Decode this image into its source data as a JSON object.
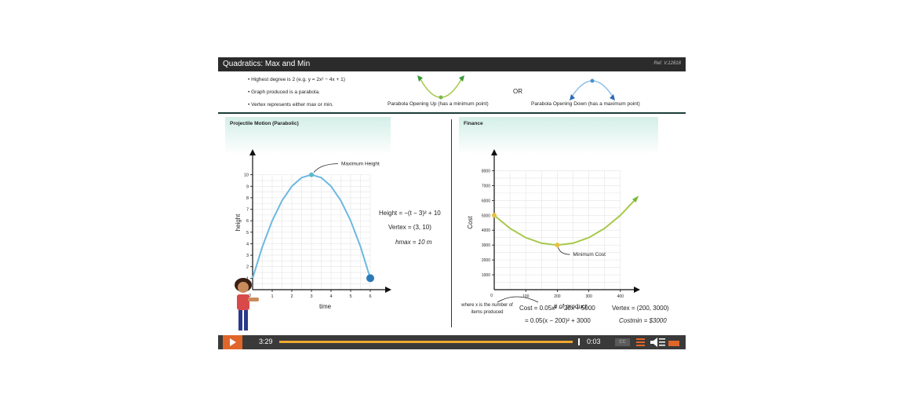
{
  "header": {
    "title": "Quadratics: Max and Min",
    "ref": "Ref. V.12818"
  },
  "intro": {
    "bullets": [
      "Highest degree is 2 (e.g. y  =  2x² − 4x + 1)",
      "Graph produced is a parabola.",
      "Vertex represents either max or min."
    ],
    "opening_up_label": "Parabola Opening Up (has a minimum point)",
    "or_label": "OR",
    "opening_down_label": "Parabola Opening Down (has a maximum point)"
  },
  "left_panel": {
    "title": "Projectile Motion (Parabolic)",
    "annotation": "Maximum Height",
    "equations": [
      "Height  =  −(t − 3)² + 10",
      "Vertex  =  (3, 10)",
      "hmax  =  10 m"
    ]
  },
  "right_panel": {
    "title": "Finance",
    "annotation": "Minimum  Cost",
    "note": "where x is the number of items produced",
    "equations": [
      "Cost  =  0.05x² − 20x + 5000",
      "=  0.05(x − 200)² + 3000",
      "Vertex  =  (200, 3000)",
      "Costmin  =  $3000"
    ]
  },
  "chart_data": [
    {
      "type": "line",
      "title": "",
      "xlabel": "time",
      "ylabel": "height",
      "x_ticks": [
        1,
        2,
        3,
        4,
        5,
        6
      ],
      "y_ticks": [
        1,
        2,
        3,
        4,
        5,
        6,
        7,
        8,
        9,
        10
      ],
      "origin_label": "0",
      "xlim": [
        0,
        7
      ],
      "ylim": [
        0,
        11
      ],
      "series": [
        {
          "x": [
            0,
            0.5,
            1,
            1.5,
            2,
            2.5,
            3,
            3.5,
            4,
            4.5,
            5,
            5.5,
            6
          ],
          "y": [
            1,
            3.75,
            6,
            7.75,
            9,
            9.75,
            10,
            9.75,
            9,
            7.75,
            6,
            3.75,
            1
          ]
        }
      ],
      "points": [
        {
          "x": 3,
          "y": 10
        },
        {
          "x": 6,
          "y": 1
        }
      ],
      "grid": true,
      "color": "#6cb8e0"
    },
    {
      "type": "line",
      "title": "",
      "xlabel": "# of product",
      "ylabel": "Cost",
      "x_ticks": [
        100,
        200,
        300,
        400
      ],
      "y_ticks": [
        1000,
        2000,
        3000,
        4000,
        5000,
        6000,
        7000,
        8000
      ],
      "origin_label": "0",
      "xlim": [
        0,
        480
      ],
      "ylim": [
        0,
        8500
      ],
      "series": [
        {
          "x": [
            0,
            50,
            100,
            150,
            200,
            250,
            300,
            350,
            400,
            450
          ],
          "y": [
            5000,
            4125,
            3500,
            3125,
            3000,
            3125,
            3500,
            4125,
            5000,
            6125
          ]
        }
      ],
      "points": [
        {
          "x": 0,
          "y": 5000
        },
        {
          "x": 200,
          "y": 3000
        }
      ],
      "grid": true,
      "color": "#a8c84a"
    }
  ],
  "controls": {
    "current_time": "3:29",
    "remaining_time": "0:03",
    "progress": 0.98,
    "cc_label": "CC"
  },
  "colors": {
    "accent": "#e0662a",
    "progress": "#f0a830",
    "teal": "#d4efe8"
  }
}
